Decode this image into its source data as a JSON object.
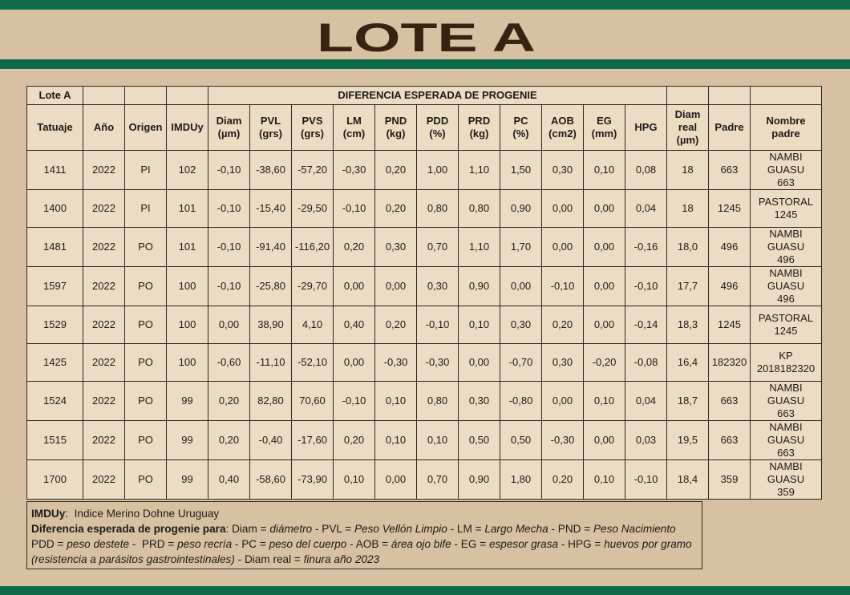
{
  "header": {
    "title": "LOTE A"
  },
  "table": {
    "corner": "Lote A",
    "group_header": "DIFERENCIA ESPERADA DE PROGENIE",
    "columns": [
      "Tatuaje",
      "Año",
      "Origen",
      "IMDUy",
      "Diam\n(µm)",
      "PVL\n(grs)",
      "PVS\n(grs)",
      "LM\n(cm)",
      "PND\n(kg)",
      "PDD\n(%)",
      "PRD\n(kg)",
      "PC\n(%)",
      "AOB\n(cm2)",
      "EG\n(mm)",
      "HPG",
      "Diam\nreal\n(µm)",
      "Padre",
      "Nombre\npadre"
    ],
    "rows": [
      [
        "1411",
        "2022",
        "PI",
        "102",
        "-0,10",
        "-38,60",
        "-57,20",
        "-0,30",
        "0,20",
        "1,00",
        "1,10",
        "1,50",
        "0,30",
        "0,10",
        "0,08",
        "18",
        "663",
        "NAMBI GUASU\n663"
      ],
      [
        "1400",
        "2022",
        "PI",
        "101",
        "-0,10",
        "-15,40",
        "-29,50",
        "-0,10",
        "0,20",
        "0,80",
        "0,80",
        "0,90",
        "0,00",
        "0,00",
        "0,04",
        "18",
        "1245",
        "PASTORAL\n1245"
      ],
      [
        "1481",
        "2022",
        "PO",
        "101",
        "-0,10",
        "-91,40",
        "-116,20",
        "0,20",
        "0,30",
        "0,70",
        "1,10",
        "1,70",
        "0,00",
        "0,00",
        "-0,16",
        "18,0",
        "496",
        "NAMBI GUASU\n496"
      ],
      [
        "1597",
        "2022",
        "PO",
        "100",
        "-0,10",
        "-25,80",
        "-29,70",
        "0,00",
        "0,00",
        "0,30",
        "0,90",
        "0,00",
        "-0,10",
        "0,00",
        "-0,10",
        "17,7",
        "496",
        "NAMBI GUASU\n496"
      ],
      [
        "1529",
        "2022",
        "PO",
        "100",
        "0,00",
        "38,90",
        "4,10",
        "0,40",
        "0,20",
        "-0,10",
        "0,10",
        "0,30",
        "0,20",
        "0,00",
        "-0,14",
        "18,3",
        "1245",
        "PASTORAL\n1245"
      ],
      [
        "1425",
        "2022",
        "PO",
        "100",
        "-0,60",
        "-11,10",
        "-52,10",
        "0,00",
        "-0,30",
        "-0,30",
        "0,00",
        "-0,70",
        "0,30",
        "-0,20",
        "-0,08",
        "16,4",
        "182320",
        "KP\n2018182320"
      ],
      [
        "1524",
        "2022",
        "PO",
        "99",
        "0,20",
        "82,80",
        "70,60",
        "-0,10",
        "0,10",
        "0,80",
        "0,30",
        "-0,80",
        "0,00",
        "0,10",
        "0,04",
        "18,7",
        "663",
        "NAMBI GUASU\n663"
      ],
      [
        "1515",
        "2022",
        "PO",
        "99",
        "0,20",
        "-0,40",
        "-17,60",
        "0,20",
        "0,10",
        "0,10",
        "0,50",
        "0,50",
        "-0,30",
        "0,00",
        "0,03",
        "19,5",
        "663",
        "NAMBI GUASU\n663"
      ],
      [
        "1700",
        "2022",
        "PO",
        "99",
        "0,40",
        "-58,60",
        "-73,90",
        "0,10",
        "0,00",
        "0,70",
        "0,90",
        "1,80",
        "0,20",
        "0,10",
        "-0,10",
        "18,4",
        "359",
        "NAMBI GUASU\n359"
      ]
    ]
  },
  "legend": {
    "lines": [
      [
        "IMDUy",
        ":  Indice Merino Dohne Uruguay"
      ],
      [
        "Diferencia esperada de progenie para",
        ": Diam = ",
        "diámetro",
        " - PVL = ",
        "Peso Vellón Limpio",
        " - LM = ",
        "Largo Mecha",
        " - PND = ",
        "Peso Nacimiento"
      ],
      [
        "PDD = ",
        "peso destete",
        " -  PRD = ",
        "peso recría",
        " - PC = ",
        "peso del cuerpo",
        " - AOB = ",
        "área ojo bife",
        " - EG = ",
        "espesor grasa",
        " - HPG = ",
        "huevos por gramo"
      ],
      [
        "(resistencia a parásitos gastrointestinales)",
        " - Diam real = ",
        "finura año 2023"
      ]
    ]
  }
}
